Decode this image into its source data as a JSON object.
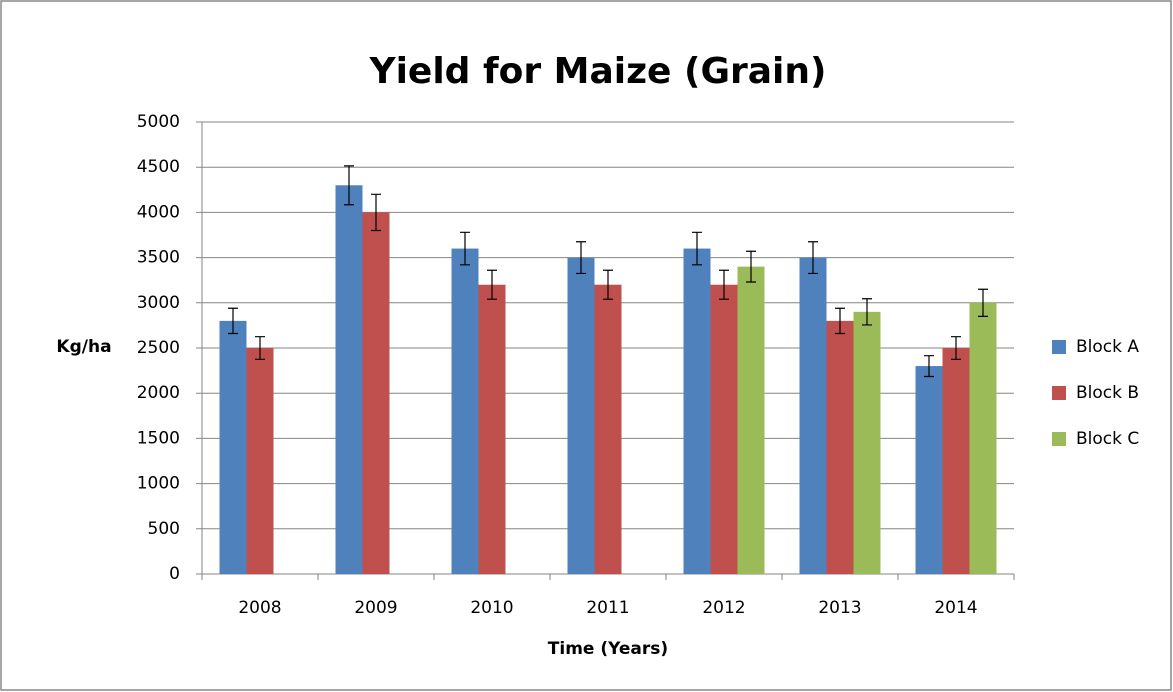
{
  "chart_data": {
    "type": "bar",
    "title": "Yield for Maize (Grain)",
    "x_label": "Time (Years)",
    "y_label": "Kg/ha",
    "categories": [
      "2008",
      "2009",
      "2010",
      "2011",
      "2012",
      "2013",
      "2014"
    ],
    "series": [
      {
        "name": "Block A",
        "color": "#4f81bd",
        "values": [
          2800,
          4300,
          3600,
          3500,
          3600,
          3500,
          2300
        ],
        "errors": [
          140,
          215,
          180,
          175,
          180,
          175,
          115
        ]
      },
      {
        "name": "Block B",
        "color": "#c0504d",
        "values": [
          2500,
          4000,
          3200,
          3200,
          3200,
          2800,
          2500
        ],
        "errors": [
          125,
          200,
          160,
          160,
          160,
          140,
          125
        ]
      },
      {
        "name": "Block C",
        "color": "#9bbb59",
        "values": [
          null,
          null,
          null,
          null,
          3400,
          2900,
          3000
        ],
        "errors": [
          null,
          null,
          null,
          null,
          170,
          145,
          150
        ]
      }
    ],
    "ylim": [
      0,
      5000
    ],
    "yticks": [
      0,
      500,
      1000,
      1500,
      2000,
      2500,
      3000,
      3500,
      4000,
      4500,
      5000
    ],
    "grid": true,
    "legend": "right"
  }
}
